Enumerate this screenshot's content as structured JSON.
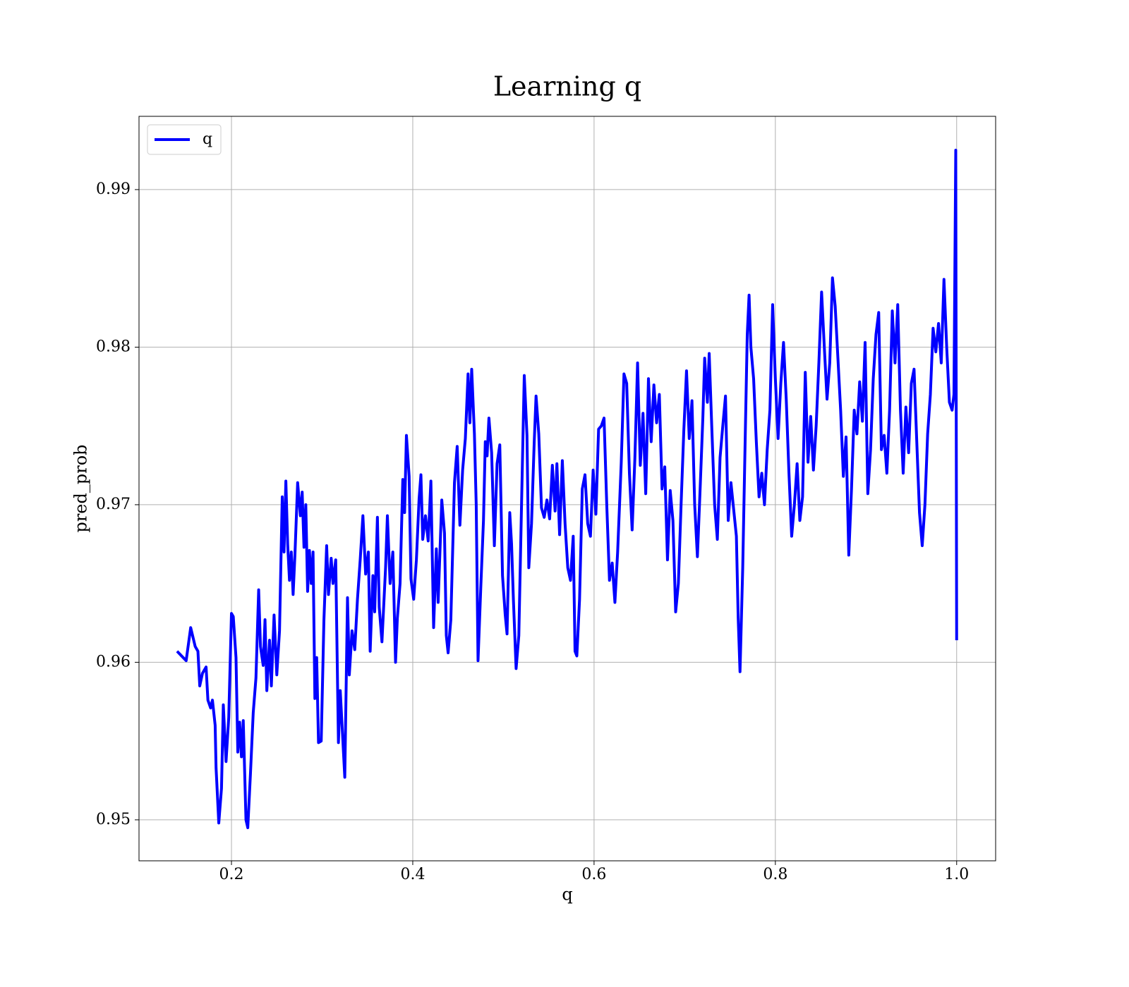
{
  "chart_data": {
    "type": "line",
    "title": "Learning q",
    "x_label": "q",
    "y_label": "pred_prob",
    "x": [
      0.14,
      0.15,
      0.155,
      0.16,
      0.163,
      0.165,
      0.168,
      0.172,
      0.174,
      0.177,
      0.179,
      0.182,
      0.183,
      0.186,
      0.189,
      0.191,
      0.194,
      0.197,
      0.2,
      0.202,
      0.205,
      0.207,
      0.209,
      0.211,
      0.213,
      0.216,
      0.218,
      0.221,
      0.224,
      0.227,
      0.23,
      0.232,
      0.235,
      0.237,
      0.239,
      0.242,
      0.244,
      0.247,
      0.25,
      0.253,
      0.256,
      0.258,
      0.26,
      0.262,
      0.264,
      0.266,
      0.268,
      0.27,
      0.273,
      0.276,
      0.278,
      0.28,
      0.282,
      0.284,
      0.286,
      0.288,
      0.29,
      0.292,
      0.294,
      0.296,
      0.299,
      0.302,
      0.305,
      0.307,
      0.31,
      0.312,
      0.315,
      0.318,
      0.32,
      0.322,
      0.325,
      0.328,
      0.33,
      0.333,
      0.336,
      0.339,
      0.342,
      0.345,
      0.348,
      0.351,
      0.353,
      0.356,
      0.358,
      0.361,
      0.363,
      0.366,
      0.37,
      0.372,
      0.375,
      0.378,
      0.381,
      0.383,
      0.386,
      0.389,
      0.391,
      0.393,
      0.396,
      0.398,
      0.401,
      0.404,
      0.407,
      0.409,
      0.411,
      0.414,
      0.417,
      0.42,
      0.423,
      0.426,
      0.428,
      0.432,
      0.435,
      0.437,
      0.439,
      0.442,
      0.446,
      0.449,
      0.452,
      0.455,
      0.458,
      0.461,
      0.463,
      0.465,
      0.468,
      0.47,
      0.472,
      0.475,
      0.478,
      0.48,
      0.482,
      0.484,
      0.487,
      0.49,
      0.493,
      0.496,
      0.499,
      0.502,
      0.504,
      0.507,
      0.509,
      0.511,
      0.514,
      0.517,
      0.52,
      0.523,
      0.526,
      0.528,
      0.531,
      0.534,
      0.536,
      0.539,
      0.542,
      0.545,
      0.548,
      0.551,
      0.554,
      0.557,
      0.559,
      0.562,
      0.565,
      0.568,
      0.571,
      0.574,
      0.577,
      0.579,
      0.581,
      0.584,
      0.587,
      0.59,
      0.593,
      0.596,
      0.599,
      0.602,
      0.605,
      0.608,
      0.611,
      0.614,
      0.617,
      0.62,
      0.623,
      0.626,
      0.63,
      0.633,
      0.636,
      0.639,
      0.642,
      0.645,
      0.648,
      0.651,
      0.654,
      0.657,
      0.66,
      0.663,
      0.666,
      0.669,
      0.672,
      0.675,
      0.678,
      0.681,
      0.684,
      0.687,
      0.69,
      0.693,
      0.696,
      0.699,
      0.702,
      0.705,
      0.708,
      0.711,
      0.714,
      0.717,
      0.72,
      0.722,
      0.725,
      0.727,
      0.73,
      0.733,
      0.736,
      0.739,
      0.742,
      0.745,
      0.748,
      0.751,
      0.754,
      0.757,
      0.759,
      0.761,
      0.764,
      0.767,
      0.769,
      0.771,
      0.773,
      0.776,
      0.779,
      0.782,
      0.785,
      0.788,
      0.791,
      0.794,
      0.797,
      0.8,
      0.803,
      0.806,
      0.809,
      0.812,
      0.815,
      0.818,
      0.821,
      0.824,
      0.827,
      0.83,
      0.833,
      0.836,
      0.839,
      0.842,
      0.845,
      0.848,
      0.851,
      0.854,
      0.857,
      0.86,
      0.863,
      0.866,
      0.869,
      0.872,
      0.875,
      0.878,
      0.881,
      0.884,
      0.887,
      0.89,
      0.893,
      0.896,
      0.899,
      0.902,
      0.905,
      0.908,
      0.911,
      0.914,
      0.917,
      0.92,
      0.923,
      0.926,
      0.929,
      0.932,
      0.935,
      0.938,
      0.941,
      0.944,
      0.947,
      0.95,
      0.953,
      0.956,
      0.959,
      0.962,
      0.965,
      0.968,
      0.971,
      0.974,
      0.977,
      0.98,
      0.983,
      0.986,
      0.989,
      0.992,
      0.995,
      0.997,
      0.999,
      1.0
    ],
    "series": [
      {
        "name": "q",
        "color": "#0000ff",
        "values": [
          0.9607,
          0.9601,
          0.9622,
          0.961,
          0.9607,
          0.9585,
          0.9593,
          0.9597,
          0.9576,
          0.9571,
          0.9576,
          0.956,
          0.9533,
          0.9498,
          0.952,
          0.9573,
          0.9537,
          0.9565,
          0.9631,
          0.9629,
          0.9603,
          0.9543,
          0.9562,
          0.954,
          0.9563,
          0.95,
          0.9495,
          0.953,
          0.9568,
          0.959,
          0.9646,
          0.961,
          0.9598,
          0.9627,
          0.9582,
          0.9614,
          0.9585,
          0.963,
          0.9592,
          0.962,
          0.9705,
          0.967,
          0.9715,
          0.9675,
          0.9652,
          0.967,
          0.9643,
          0.9668,
          0.9714,
          0.9693,
          0.9708,
          0.9673,
          0.97,
          0.9645,
          0.9671,
          0.965,
          0.967,
          0.9577,
          0.9603,
          0.9549,
          0.955,
          0.9627,
          0.9674,
          0.9643,
          0.9666,
          0.965,
          0.9665,
          0.9549,
          0.9582,
          0.956,
          0.9527,
          0.9641,
          0.9592,
          0.962,
          0.9608,
          0.964,
          0.9665,
          0.9693,
          0.9656,
          0.967,
          0.9607,
          0.9655,
          0.9632,
          0.9692,
          0.9635,
          0.9613,
          0.966,
          0.9693,
          0.965,
          0.967,
          0.96,
          0.9628,
          0.965,
          0.9716,
          0.9695,
          0.9744,
          0.9718,
          0.9653,
          0.964,
          0.9665,
          0.9704,
          0.9719,
          0.9678,
          0.9693,
          0.9677,
          0.9715,
          0.9622,
          0.9672,
          0.9638,
          0.9703,
          0.9682,
          0.9617,
          0.9606,
          0.9627,
          0.9714,
          0.9737,
          0.9687,
          0.9722,
          0.9742,
          0.9783,
          0.9752,
          0.9786,
          0.9745,
          0.97,
          0.9601,
          0.9647,
          0.969,
          0.974,
          0.9731,
          0.9755,
          0.9733,
          0.9674,
          0.9726,
          0.9738,
          0.9655,
          0.963,
          0.9618,
          0.9695,
          0.9675,
          0.964,
          0.9596,
          0.9617,
          0.97,
          0.9782,
          0.9744,
          0.966,
          0.9688,
          0.974,
          0.9769,
          0.9745,
          0.9698,
          0.9692,
          0.9703,
          0.9691,
          0.9725,
          0.9696,
          0.9726,
          0.9681,
          0.9728,
          0.9688,
          0.966,
          0.9652,
          0.968,
          0.9607,
          0.9604,
          0.964,
          0.971,
          0.9719,
          0.9688,
          0.968,
          0.9722,
          0.9694,
          0.9748,
          0.975,
          0.9755,
          0.97,
          0.9652,
          0.9663,
          0.9638,
          0.967,
          0.9727,
          0.9783,
          0.9777,
          0.972,
          0.9684,
          0.9729,
          0.979,
          0.9725,
          0.9758,
          0.9707,
          0.978,
          0.974,
          0.9776,
          0.9752,
          0.977,
          0.971,
          0.9724,
          0.9665,
          0.9709,
          0.969,
          0.9632,
          0.965,
          0.97,
          0.9747,
          0.9785,
          0.9742,
          0.9766,
          0.97,
          0.9667,
          0.971,
          0.9755,
          0.9793,
          0.9765,
          0.9796,
          0.9747,
          0.97,
          0.9678,
          0.973,
          0.975,
          0.9769,
          0.969,
          0.9714,
          0.9697,
          0.968,
          0.9628,
          0.9594,
          0.966,
          0.975,
          0.9808,
          0.9833,
          0.98,
          0.978,
          0.974,
          0.9705,
          0.972,
          0.97,
          0.9735,
          0.976,
          0.9827,
          0.978,
          0.9742,
          0.9777,
          0.9803,
          0.9767,
          0.972,
          0.968,
          0.97,
          0.9726,
          0.969,
          0.9705,
          0.9784,
          0.9727,
          0.9756,
          0.9722,
          0.975,
          0.979,
          0.9835,
          0.98,
          0.9767,
          0.979,
          0.9844,
          0.9826,
          0.9793,
          0.976,
          0.9718,
          0.9743,
          0.9668,
          0.971,
          0.976,
          0.9745,
          0.9778,
          0.9753,
          0.9803,
          0.9707,
          0.9735,
          0.978,
          0.9808,
          0.9822,
          0.9735,
          0.9744,
          0.972,
          0.976,
          0.9823,
          0.979,
          0.9827,
          0.976,
          0.972,
          0.9762,
          0.9733,
          0.9777,
          0.9786,
          0.974,
          0.9695,
          0.9674,
          0.97,
          0.9745,
          0.977,
          0.9812,
          0.9797,
          0.9815,
          0.979,
          0.9843,
          0.98,
          0.9765,
          0.976,
          0.977,
          0.9925,
          0.9614
        ]
      }
    ],
    "xlim": [
      0.098,
      1.043
    ],
    "ylim": [
      0.9474,
      0.99465
    ],
    "xticks": [
      0.2,
      0.4,
      0.6,
      0.8,
      {
        "value": 1,
        "label": "1.0"
      }
    ],
    "yticks": [
      0.95,
      0.96,
      0.97,
      0.98,
      0.99
    ],
    "grid": true,
    "legend": "upper-left"
  }
}
